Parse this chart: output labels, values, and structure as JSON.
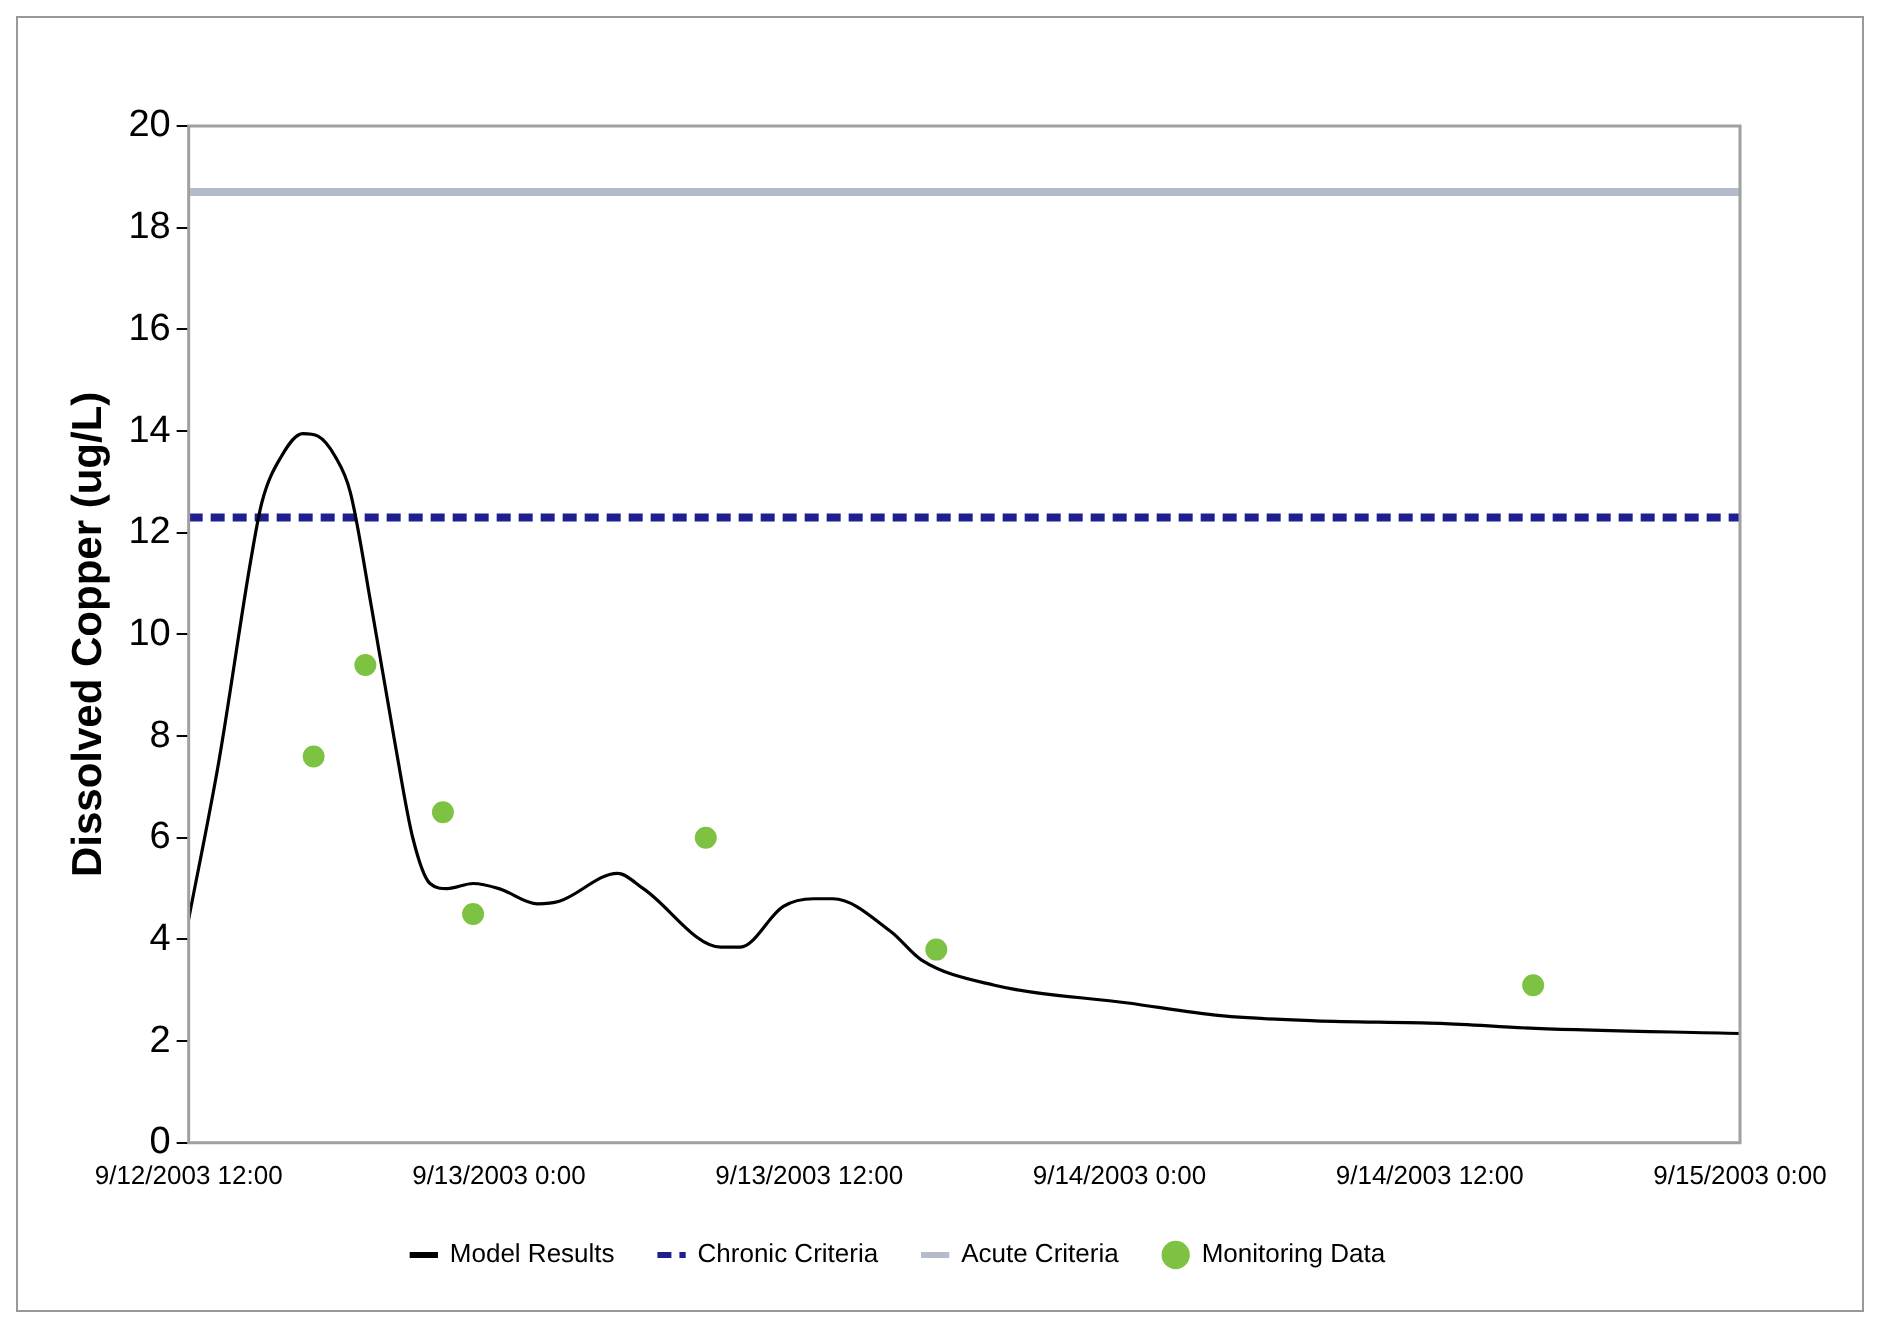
{
  "chart_data": {
    "type": "line",
    "ylabel": "Dissolved Copper (ug/L)",
    "xlim": [
      "2003-09-12T12:00",
      "2003-09-15T00:00"
    ],
    "xticks": [
      {
        "value": "2003-09-12T12:00",
        "label": "9/12/2003 12:00"
      },
      {
        "value": "2003-09-13T00:00",
        "label": "9/13/2003 0:00"
      },
      {
        "value": "2003-09-13T12:00",
        "label": "9/13/2003 12:00"
      },
      {
        "value": "2003-09-14T00:00",
        "label": "9/14/2003 0:00"
      },
      {
        "value": "2003-09-14T12:00",
        "label": "9/14/2003 12:00"
      },
      {
        "value": "2003-09-15T00:00",
        "label": "9/15/2003 0:00"
      }
    ],
    "ylim": [
      0,
      20
    ],
    "yticks": [
      0,
      2,
      4,
      6,
      8,
      10,
      12,
      14,
      16,
      18,
      20
    ],
    "grid": false,
    "legend": "bottom",
    "series": [
      {
        "name": "Model Results",
        "color": "#000000",
        "marker": "none",
        "line_style": "solid",
        "x": [
          "2003-09-12T12:00",
          "2003-09-12T13:10",
          "2003-09-12T14:25",
          "2003-09-12T14:50",
          "2003-09-12T15:35",
          "2003-09-12T16:25",
          "2003-09-12T17:00",
          "2003-09-12T17:40",
          "2003-09-12T18:15",
          "2003-09-12T19:05",
          "2003-09-12T20:00",
          "2003-09-12T20:40",
          "2003-09-12T21:20",
          "2003-09-12T22:00",
          "2003-09-12T23:00",
          "2003-09-13T00:00",
          "2003-09-13T01:30",
          "2003-09-13T02:20",
          "2003-09-13T04:35",
          "2003-09-13T05:35",
          "2003-09-13T08:35",
          "2003-09-13T09:20",
          "2003-09-13T11:00",
          "2003-09-13T12:10",
          "2003-09-13T12:55",
          "2003-09-13T15:10",
          "2003-09-13T16:20",
          "2003-09-13T19:10",
          "2003-09-14T00:20",
          "2003-09-14T03:55",
          "2003-09-14T07:35",
          "2003-09-14T12:25",
          "2003-09-14T16:05",
          "2003-09-15T00:00"
        ],
        "values": [
          4.4,
          7.5,
          11.5,
          12.6,
          13.5,
          13.95,
          13.9,
          13.5,
          12.8,
          10.5,
          7.8,
          6.0,
          5.1,
          5.0,
          5.1,
          5.0,
          4.7,
          4.75,
          5.3,
          5.0,
          3.85,
          3.85,
          4.65,
          4.8,
          4.8,
          4.15,
          3.6,
          3.1,
          2.75,
          2.5,
          2.4,
          2.35,
          2.25,
          2.15
        ]
      },
      {
        "name": "Monitoring Data",
        "type": "scatter",
        "color": "#7dc242",
        "marker": "circle",
        "x": [
          "2003-09-12T16:50",
          "2003-09-12T18:50",
          "2003-09-12T21:50",
          "2003-09-12T23:00",
          "2003-09-13T08:00",
          "2003-09-13T16:55",
          "2003-09-14T16:00"
        ],
        "values": [
          7.6,
          9.4,
          6.5,
          4.5,
          6.0,
          3.8,
          3.1
        ]
      }
    ],
    "ref_lines": [
      {
        "axis": "y",
        "value": 12.3,
        "label": "Chronic Criteria",
        "color": "#1f1f8f",
        "line_style": "dashed"
      },
      {
        "axis": "y",
        "value": 18.7,
        "label": "Acute Criteria",
        "color": "#b4bccc",
        "line_style": "solid"
      }
    ]
  }
}
